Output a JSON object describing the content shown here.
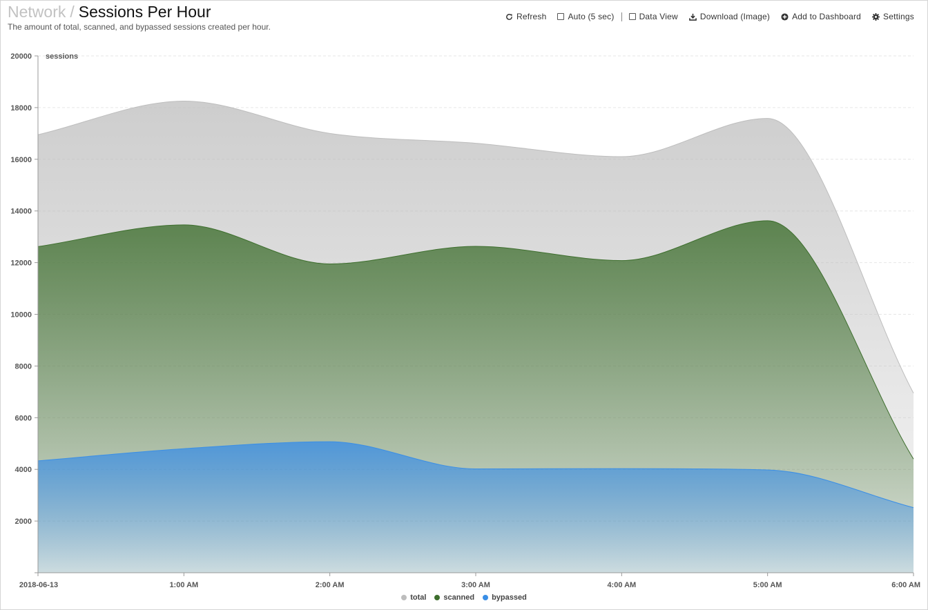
{
  "header": {
    "breadcrumb": "Network",
    "separator": "/",
    "title": "Sessions Per Hour",
    "subtitle": "The amount of total, scanned, and bypassed sessions created per hour."
  },
  "toolbar": {
    "refresh_label": "Refresh",
    "auto_label": "Auto (5 sec)",
    "auto_checked": false,
    "data_view_label": "Data View",
    "data_view_checked": false,
    "download_label": "Download (Image)",
    "dashboard_label": "Add to Dashboard",
    "settings_label": "Settings"
  },
  "chart_data": {
    "type": "area",
    "ylabel": "sessions",
    "ylim": [
      0,
      20000
    ],
    "yticks": [
      2000,
      4000,
      6000,
      8000,
      10000,
      12000,
      14000,
      16000,
      18000,
      20000
    ],
    "categories": [
      "2018-06-13",
      "1:00 AM",
      "2:00 AM",
      "3:00 AM",
      "4:00 AM",
      "5:00 AM",
      "6:00 AM"
    ],
    "grid": true,
    "legend_position": "bottom-center",
    "series": [
      {
        "name": "total",
        "color": "#bdbdbd",
        "values": [
          16950,
          18250,
          17000,
          16620,
          16100,
          17580,
          6950
        ]
      },
      {
        "name": "scanned",
        "color": "#3d6e2d",
        "values": [
          12620,
          13460,
          11950,
          12630,
          12080,
          13620,
          4400
        ]
      },
      {
        "name": "bypassed",
        "color": "#3a8ee6",
        "values": [
          4330,
          4800,
          5070,
          4020,
          4030,
          3980,
          2520
        ]
      }
    ]
  }
}
